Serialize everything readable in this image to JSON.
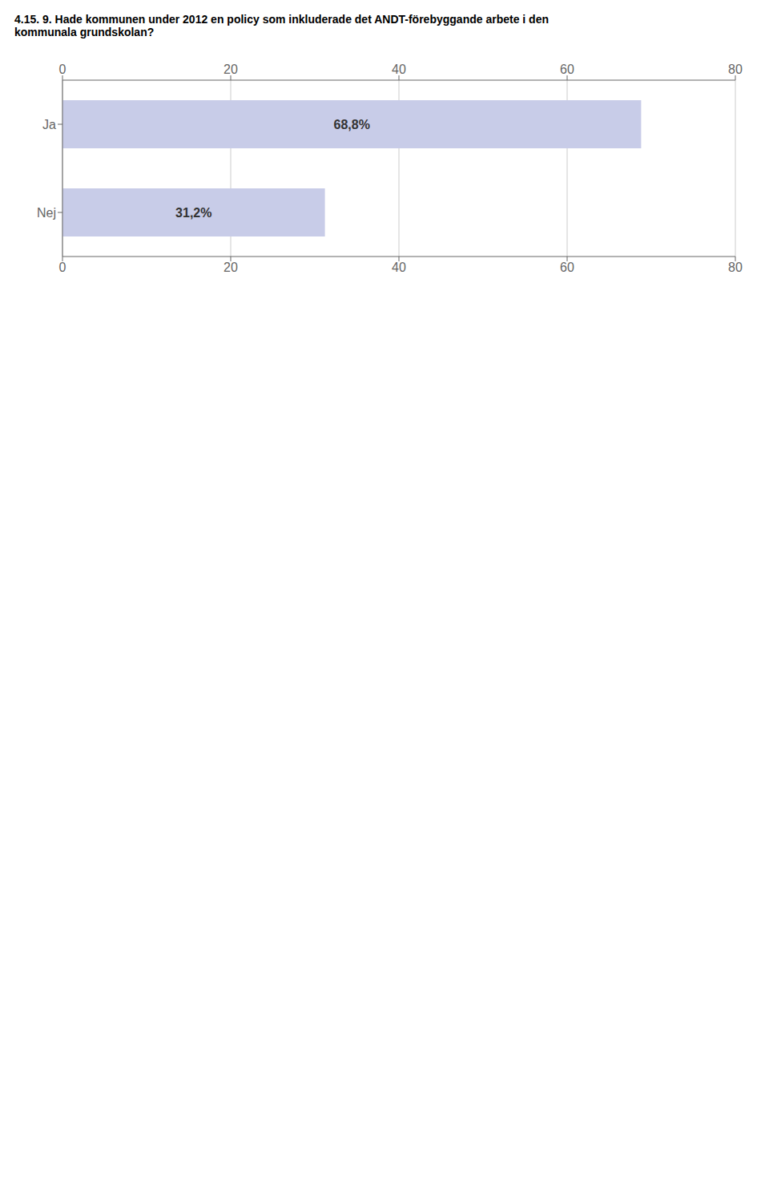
{
  "chart_data": {
    "type": "bar",
    "orientation": "horizontal",
    "title": "4.15. 9. Hade kommunen under 2012 en policy som inkluderade det ANDT-förebyggande arbete i den\nkommunala grundskolan?",
    "categories": [
      "Ja",
      "Nej"
    ],
    "values": [
      68.8,
      31.2
    ],
    "value_labels": [
      "68,8%",
      "31,2%"
    ],
    "data_labels": true,
    "color": "#c8cce8",
    "xlim": [
      0,
      80
    ],
    "xticks": [
      0,
      20,
      40,
      60,
      80
    ],
    "grid": true
  }
}
